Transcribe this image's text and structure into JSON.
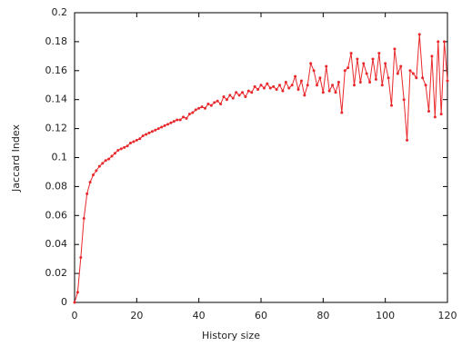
{
  "chart_data": {
    "type": "line",
    "xlabel": "History size",
    "ylabel": "Jaccard Index",
    "color": "#e8282b",
    "x": [
      0,
      1,
      2,
      3,
      4,
      5,
      6,
      7,
      8,
      9,
      10,
      11,
      12,
      13,
      14,
      15,
      16,
      17,
      18,
      19,
      20,
      21,
      22,
      23,
      24,
      25,
      26,
      27,
      28,
      29,
      30,
      31,
      32,
      33,
      34,
      35,
      36,
      37,
      38,
      39,
      40,
      41,
      42,
      43,
      44,
      45,
      46,
      47,
      48,
      49,
      50,
      51,
      52,
      53,
      54,
      55,
      56,
      57,
      58,
      59,
      60,
      61,
      62,
      63,
      64,
      65,
      66,
      67,
      68,
      69,
      70,
      71,
      72,
      73,
      74,
      75,
      76,
      77,
      78,
      79,
      80,
      81,
      82,
      83,
      84,
      85,
      86,
      87,
      88,
      89,
      90,
      91,
      92,
      93,
      94,
      95,
      96,
      97,
      98,
      99,
      100,
      101,
      102,
      103,
      104,
      105,
      106,
      107,
      108,
      109,
      110,
      111,
      112,
      113,
      114,
      115,
      116,
      117,
      118,
      119,
      120
    ],
    "values": [
      0,
      0.007,
      0.031,
      0.058,
      0.075,
      0.083,
      0.088,
      0.091,
      0.094,
      0.096,
      0.098,
      0.099,
      0.101,
      0.103,
      0.105,
      0.106,
      0.107,
      0.108,
      0.11,
      0.111,
      0.112,
      0.113,
      0.115,
      0.116,
      0.117,
      0.118,
      0.119,
      0.12,
      0.121,
      0.122,
      0.123,
      0.124,
      0.125,
      0.126,
      0.126,
      0.128,
      0.127,
      0.13,
      0.131,
      0.133,
      0.134,
      0.135,
      0.134,
      0.137,
      0.136,
      0.138,
      0.139,
      0.137,
      0.142,
      0.14,
      0.143,
      0.141,
      0.145,
      0.143,
      0.145,
      0.142,
      0.146,
      0.145,
      0.149,
      0.147,
      0.15,
      0.148,
      0.151,
      0.148,
      0.149,
      0.147,
      0.15,
      0.146,
      0.152,
      0.148,
      0.15,
      0.156,
      0.147,
      0.153,
      0.143,
      0.15,
      0.165,
      0.16,
      0.15,
      0.155,
      0.145,
      0.163,
      0.146,
      0.15,
      0.145,
      0.152,
      0.131,
      0.16,
      0.162,
      0.172,
      0.15,
      0.168,
      0.152,
      0.165,
      0.158,
      0.152,
      0.168,
      0.154,
      0.172,
      0.15,
      0.165,
      0.155,
      0.136,
      0.175,
      0.158,
      0.163,
      0.14,
      0.112,
      0.16,
      0.158,
      0.155,
      0.185,
      0.155,
      0.15,
      0.132,
      0.17,
      0.128,
      0.18,
      0.13,
      0.18,
      0.153
    ],
    "xlim": [
      0,
      120
    ],
    "xticks": [
      0,
      20,
      40,
      60,
      80,
      100,
      120
    ],
    "ylim": [
      0,
      0.2
    ],
    "yticks": [
      0,
      0.02,
      0.04,
      0.06,
      0.08,
      0.1,
      0.12,
      0.14,
      0.16,
      0.18,
      0.2
    ],
    "grid": false
  }
}
